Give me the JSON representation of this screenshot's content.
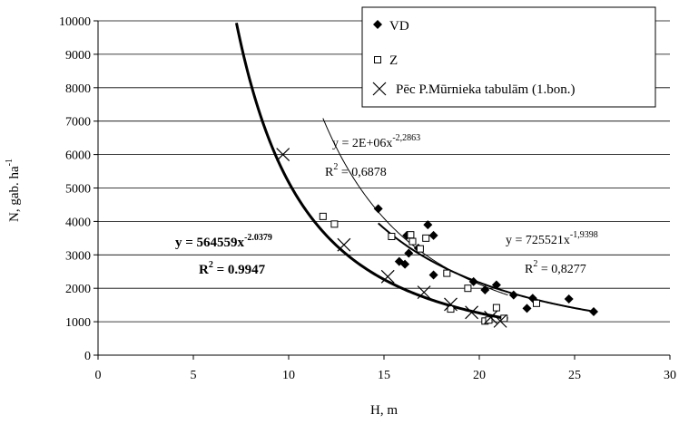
{
  "chart_data": {
    "type": "scatter",
    "xlabel": "H, m",
    "ylabel_main": "N, gab. ha",
    "ylabel_sup": "-1",
    "xlim": [
      0,
      30
    ],
    "ylim": [
      0,
      10000
    ],
    "xticks": [
      "0",
      "5",
      "10",
      "15",
      "20",
      "25",
      "30"
    ],
    "yticks": [
      "0",
      "1000",
      "2000",
      "3000",
      "4000",
      "5000",
      "6000",
      "7000",
      "8000",
      "9000",
      "10000"
    ],
    "grid": "horizontal",
    "legend_position": "top-right",
    "series": [
      {
        "name": "VD",
        "marker": "diamond",
        "points": [
          [
            14.7,
            4380
          ],
          [
            15.8,
            2800
          ],
          [
            16.1,
            2720
          ],
          [
            16.2,
            3580
          ],
          [
            16.3,
            3050
          ],
          [
            16.8,
            3200
          ],
          [
            17.3,
            3900
          ],
          [
            17.6,
            3580
          ],
          [
            17.6,
            2400
          ],
          [
            19.7,
            2200
          ],
          [
            20.3,
            1950
          ],
          [
            20.9,
            2100
          ],
          [
            21.8,
            1800
          ],
          [
            22.5,
            1400
          ],
          [
            22.8,
            1700
          ],
          [
            24.7,
            1680
          ],
          [
            26.0,
            1300
          ]
        ]
      },
      {
        "name": "Z",
        "marker": "square-open",
        "points": [
          [
            11.8,
            4150
          ],
          [
            12.4,
            3920
          ],
          [
            15.4,
            3550
          ],
          [
            16.4,
            3600
          ],
          [
            16.5,
            3400
          ],
          [
            16.9,
            3180
          ],
          [
            17.2,
            3500
          ],
          [
            18.3,
            2450
          ],
          [
            18.5,
            1380
          ],
          [
            19.4,
            2000
          ],
          [
            20.3,
            1020
          ],
          [
            20.5,
            1050
          ],
          [
            20.9,
            1420
          ],
          [
            21.3,
            1100
          ],
          [
            23.0,
            1550
          ]
        ]
      },
      {
        "name": "Pēc P.Mūrnieka tabulām (1.bon.)",
        "marker": "x",
        "points": [
          [
            9.7,
            6000
          ],
          [
            12.9,
            3300
          ],
          [
            15.2,
            2350
          ],
          [
            17.1,
            1880
          ],
          [
            18.5,
            1520
          ],
          [
            19.6,
            1280
          ],
          [
            20.6,
            1130
          ],
          [
            21.1,
            1020
          ]
        ]
      }
    ],
    "trendlines": [
      {
        "series": "Pēc P.Mūrnieka tabulām (1.bon.)",
        "a": 564559,
        "b": -2.0379,
        "x_range": [
          6.0,
          21.5
        ],
        "width": 3
      },
      {
        "series": "Z",
        "a": 2000000,
        "b": -2.2863,
        "x_range": [
          11.8,
          21.5
        ],
        "width": 1
      },
      {
        "series": "VD",
        "a": 725521,
        "b": -1.9398,
        "x_range": [
          14.7,
          26.0
        ],
        "width": 2
      }
    ],
    "annotations": {
      "eq_murnieks": {
        "text": "y = 564559x",
        "sup": "-2.0379"
      },
      "r2_murnieks": {
        "text": "R",
        "sup": "2",
        "rest": " = 0.9947"
      },
      "eq_z": {
        "text": "y = 2E+06x",
        "sup": "-2,2863"
      },
      "r2_z": {
        "text": "R",
        "sup": "2",
        "rest": " = 0,6878"
      },
      "eq_vd": {
        "text": "y = 725521x",
        "sup": "-1,9398"
      },
      "r2_vd": {
        "text": "R",
        "sup": "2",
        "rest": " = 0,8277"
      }
    }
  }
}
